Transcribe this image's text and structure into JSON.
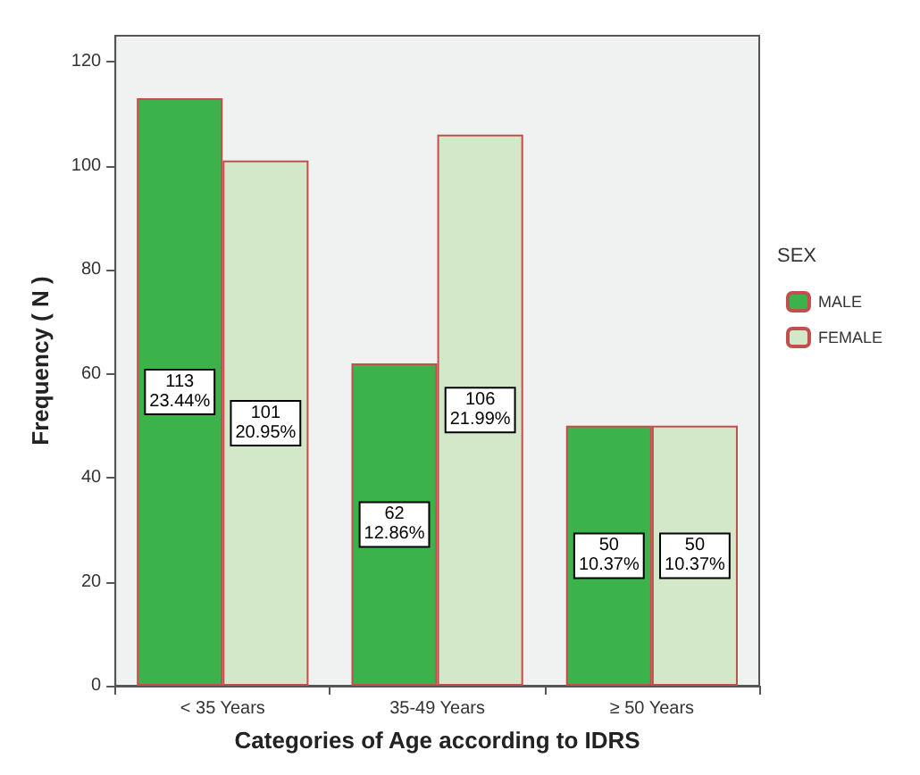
{
  "chart_data": {
    "type": "bar",
    "xlabel": "Categories of Age according to IDRS",
    "ylabel": "Frequency ( N )",
    "legend_title": "SEX",
    "categories": [
      "< 35 Years",
      "35-49 Years",
      "≥ 50 Years"
    ],
    "series": [
      {
        "name": "MALE",
        "color": "#3bb34a",
        "values": [
          113,
          62,
          50
        ],
        "value_labels": [
          "113\n23.44%",
          "62\n12.86%",
          "50\n10.37%"
        ]
      },
      {
        "name": "FEMALE",
        "color": "#d3e8c8",
        "values": [
          101,
          106,
          50
        ],
        "value_labels": [
          "101\n20.95%",
          "106\n21.99%",
          "50\n10.37%"
        ]
      }
    ],
    "ylim": [
      0,
      125
    ],
    "yticks": [
      0,
      20,
      40,
      60,
      80,
      100,
      120
    ],
    "grid": false,
    "legend": "right"
  }
}
